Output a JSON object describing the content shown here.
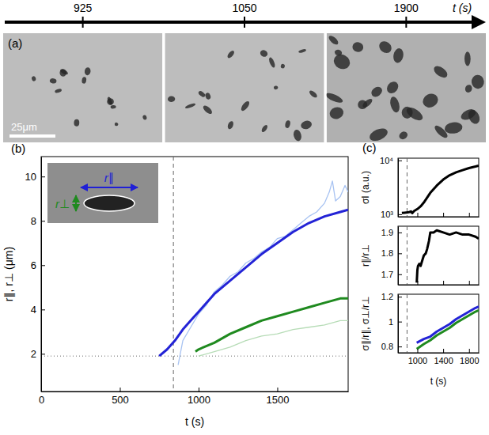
{
  "chart_data": [
    {
      "type": "timeline",
      "title": "(a)",
      "xlabel": "t (s)",
      "categories": [
        925,
        1050,
        1900
      ],
      "annotations": [
        {
          "text": "25μm"
        }
      ]
    },
    {
      "type": "line",
      "title": "(b)",
      "xlabel": "t (s)",
      "ylabel": "r∥, r⊥ (μm)",
      "xlim": [
        0,
        1950
      ],
      "ylim": [
        0.3,
        10.9
      ],
      "xticks": [
        0,
        500,
        1000,
        1500
      ],
      "yticks": [
        2,
        4,
        6,
        8,
        10
      ],
      "reference_lines": {
        "x": 840,
        "y": 1.9
      },
      "annotations": [
        {
          "text": "r∥",
          "color": "#1f1fd6"
        },
        {
          "text": "r⊥",
          "color": "#1f8a1f"
        }
      ],
      "series": [
        {
          "color": "#a8c3f2",
          "line_style": "thin",
          "x": [
            870,
            900,
            950,
            1000,
            1050,
            1100,
            1150,
            1200,
            1250,
            1300,
            1350,
            1400,
            1450,
            1500,
            1550,
            1600,
            1650,
            1700,
            1750,
            1800,
            1830,
            1850,
            1870,
            1900,
            1930,
            1950
          ],
          "values": [
            1.5,
            2.6,
            3.2,
            3.8,
            4.2,
            4.8,
            5.1,
            5.5,
            5.7,
            6.1,
            6.3,
            6.6,
            6.8,
            7.2,
            7.3,
            7.6,
            7.9,
            8.2,
            8.4,
            8.8,
            9.3,
            9.8,
            8.9,
            9.1,
            9.6,
            9.3
          ]
        },
        {
          "color": "#b6dcb6",
          "line_style": "thin",
          "x": [
            1000,
            1100,
            1200,
            1300,
            1400,
            1500,
            1600,
            1700,
            1800,
            1900,
            1950
          ],
          "values": [
            1.9,
            2.1,
            2.3,
            2.6,
            2.8,
            2.9,
            3.1,
            3.2,
            3.3,
            3.5,
            3.5
          ]
        },
        {
          "color": "#2323d6",
          "line_style": "thick",
          "x": [
            750,
            800,
            850,
            900,
            950,
            1000,
            1100,
            1200,
            1300,
            1400,
            1500,
            1600,
            1700,
            1800,
            1900,
            1950
          ],
          "values": [
            1.9,
            2.2,
            2.6,
            3.1,
            3.5,
            3.9,
            4.7,
            5.3,
            5.9,
            6.5,
            7.0,
            7.5,
            7.9,
            8.2,
            8.4,
            8.5
          ]
        },
        {
          "color": "#1f8a1f",
          "line_style": "thick",
          "x": [
            980,
            1000,
            1100,
            1200,
            1300,
            1400,
            1500,
            1600,
            1700,
            1800,
            1900,
            1950
          ],
          "values": [
            2.1,
            2.2,
            2.5,
            2.9,
            3.2,
            3.5,
            3.7,
            3.9,
            4.1,
            4.3,
            4.5,
            4.5
          ]
        }
      ]
    },
    {
      "type": "line",
      "title": "(c)",
      "ylabel": "σI (a.u.)",
      "log": "y",
      "xlim": [
        700,
        1950
      ],
      "ylim": [
        900,
        11000
      ],
      "xticks": [
        1000,
        1400,
        1800
      ],
      "yticks": [
        {
          "value": 1000,
          "label": "10³"
        },
        {
          "value": 10000,
          "label": "10⁴"
        }
      ],
      "tick_labels": "y",
      "reference_lines": {
        "x": 840
      },
      "series": [
        {
          "color": "#000000",
          "line_style": "thick",
          "x": [
            760,
            800,
            850,
            880,
            900,
            920,
            950,
            1000,
            1050,
            1100,
            1200,
            1300,
            1400,
            1500,
            1600,
            1700,
            1800,
            1900,
            1950
          ],
          "values": [
            1060,
            1070,
            1080,
            1100,
            1130,
            1050,
            1150,
            1250,
            1400,
            1650,
            2500,
            3400,
            4400,
            5300,
            6000,
            6600,
            7200,
            7700,
            8000
          ]
        }
      ]
    },
    {
      "type": "line",
      "ylabel": "r∥/r⊥",
      "xlim": [
        700,
        1950
      ],
      "ylim": [
        1.65,
        1.93
      ],
      "xticks": [
        1000,
        1400,
        1800
      ],
      "yticks": [
        1.7,
        1.8,
        1.9
      ],
      "tick_labels": "y",
      "reference_lines": {
        "x": 840
      },
      "series": [
        {
          "color": "#000000",
          "line_style": "thick",
          "x": [
            990,
            1000,
            1010,
            1030,
            1050,
            1080,
            1100,
            1130,
            1150,
            1180,
            1200,
            1250,
            1300,
            1400,
            1500,
            1600,
            1700,
            1800,
            1900,
            1950
          ],
          "values": [
            1.66,
            1.72,
            1.74,
            1.75,
            1.74,
            1.77,
            1.79,
            1.8,
            1.82,
            1.86,
            1.9,
            1.9,
            1.91,
            1.9,
            1.89,
            1.9,
            1.89,
            1.89,
            1.88,
            1.87
          ]
        }
      ]
    },
    {
      "type": "line",
      "xlabel": "t (s)",
      "ylabel": "σ∥/r∥, σ⊥/r⊥",
      "xlim": [
        700,
        1950
      ],
      "ylim": [
        0.75,
        1.22
      ],
      "xticks": [
        1000,
        1400,
        1800
      ],
      "yticks": [
        0.8,
        1,
        1.2
      ],
      "reference_lines": {
        "x": 840
      },
      "series": [
        {
          "color": "#2323d6",
          "line_style": "thick",
          "x": [
            990,
            1100,
            1200,
            1300,
            1400,
            1500,
            1600,
            1700,
            1800,
            1900,
            1950
          ],
          "values": [
            0.83,
            0.86,
            0.88,
            0.92,
            0.95,
            0.98,
            1.02,
            1.05,
            1.08,
            1.11,
            1.12
          ]
        },
        {
          "color": "#1f8a1f",
          "line_style": "thick",
          "x": [
            990,
            1100,
            1200,
            1300,
            1400,
            1500,
            1600,
            1700,
            1800,
            1900,
            1950
          ],
          "values": [
            0.78,
            0.82,
            0.85,
            0.89,
            0.92,
            0.95,
            0.99,
            1.02,
            1.05,
            1.08,
            1.09
          ]
        }
      ]
    }
  ]
}
